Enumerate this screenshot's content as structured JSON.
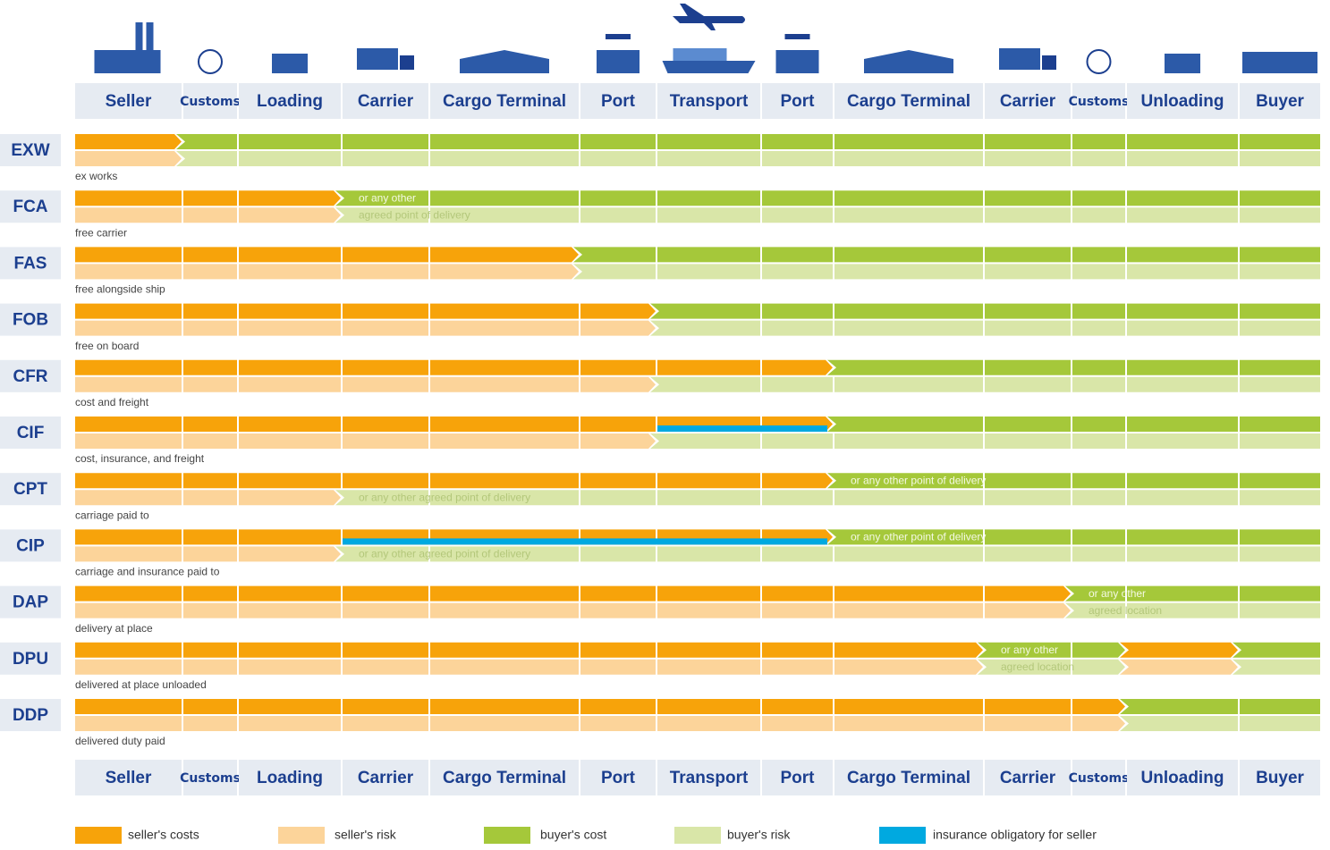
{
  "columns": [
    "Seller",
    "Customs",
    "Loading",
    "Carrier",
    "Cargo Terminal",
    "Port",
    "Transport",
    "Port",
    "Cargo Terminal",
    "Carrier",
    "Customs",
    "Unloading",
    "Buyer"
  ],
  "rows": [
    {
      "code": "EXW",
      "description": "ex works",
      "notes": []
    },
    {
      "code": "FCA",
      "description": "free carrier",
      "notes": [
        "or any other",
        "agreed point of delivery"
      ]
    },
    {
      "code": "FAS",
      "description": "free alongside ship",
      "notes": []
    },
    {
      "code": "FOB",
      "description": "free on board",
      "notes": []
    },
    {
      "code": "CFR",
      "description": "cost and freight",
      "notes": []
    },
    {
      "code": "CIF",
      "description": "cost, insurance, and freight",
      "notes": []
    },
    {
      "code": "CPT",
      "description": "carriage paid to",
      "notes": [
        "or any other point of delivery",
        "or any other agreed point of delivery"
      ]
    },
    {
      "code": "CIP",
      "description": "carriage and insurance paid to",
      "notes": [
        "or any other point of delivery",
        "or any other agreed point of delivery"
      ]
    },
    {
      "code": "DAP",
      "description": "delivery at place",
      "notes": [
        "or any other",
        "agreed location"
      ]
    },
    {
      "code": "DPU",
      "description": "delivered at place unloaded",
      "notes": [
        "or any other",
        "agreed location"
      ]
    },
    {
      "code": "DDP",
      "description": "delivered duty paid",
      "notes": []
    }
  ],
  "legend": [
    "seller's costs",
    "seller's risk",
    "buyer's cost",
    "buyer's risk",
    "insurance obligatory for seller"
  ]
}
